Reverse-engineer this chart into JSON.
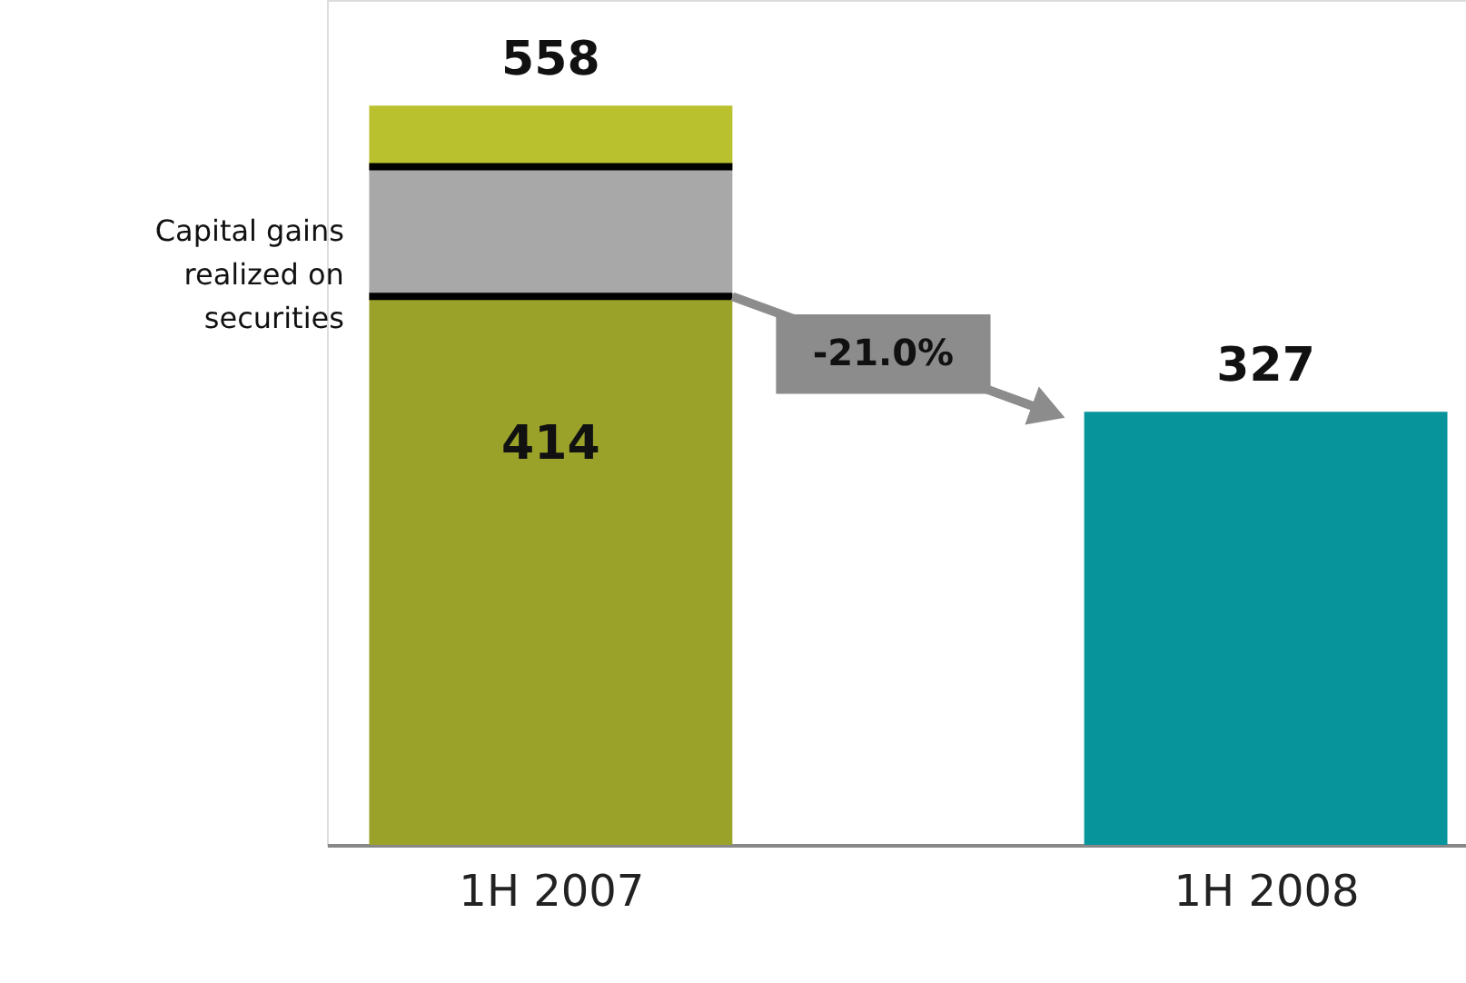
{
  "chart_data": {
    "type": "bar",
    "stacked": true,
    "categories": [
      "1H 2007",
      "1H 2008"
    ],
    "series": [
      {
        "colors": [
          "#9ba22a",
          "#08949b"
        ],
        "values": [
          414,
          327
        ],
        "value_labels": [
          "414",
          null
        ]
      },
      {
        "name": "Capital gains realized on securities",
        "color": "#a8a8a8",
        "values": [
          98,
          null
        ]
      },
      {
        "color": "#b9c12e",
        "values": [
          46,
          null
        ]
      }
    ],
    "totals": [
      "558",
      "327"
    ],
    "annotations": [
      "-21.0%"
    ],
    "grid": false
  }
}
